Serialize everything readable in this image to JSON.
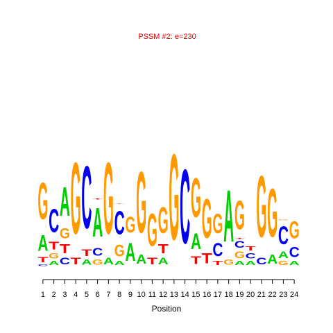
{
  "chart_data": {
    "type": "sequence-logo",
    "title": "PSSM #2: e=230",
    "xlabel": "Position",
    "ylabel": "",
    "positions": [
      "1",
      "2",
      "3",
      "4",
      "5",
      "6",
      "7",
      "8",
      "9",
      "10",
      "11",
      "12",
      "13",
      "14",
      "15",
      "16",
      "17",
      "18",
      "19",
      "20",
      "21",
      "22",
      "23",
      "24"
    ],
    "ylim": [
      0,
      1.0
    ],
    "colors": {
      "A": "#00cc00",
      "C": "#0000ee",
      "G": "#ff9900",
      "T": "#ff0000",
      "title": "#dd0000"
    },
    "columns": [
      [
        {
          "l": "C",
          "h": 0.012
        },
        {
          "l": "T",
          "h": 0.04
        },
        {
          "l": "A",
          "h": 0.12
        },
        {
          "l": "G",
          "h": 0.28
        }
      ],
      [
        {
          "l": "A",
          "h": 0.03
        },
        {
          "l": "G",
          "h": 0.04
        },
        {
          "l": "T",
          "h": 0.06
        },
        {
          "l": "C",
          "h": 0.18
        }
      ],
      [
        {
          "l": "C",
          "h": 0.05
        },
        {
          "l": "T",
          "h": 0.07
        },
        {
          "l": "G",
          "h": 0.08
        },
        {
          "l": "A",
          "h": 0.22
        }
      ],
      [
        {
          "l": "T",
          "h": 0.05
        },
        {
          "l": "G",
          "h": 0.55
        }
      ],
      [
        {
          "l": "A",
          "h": 0.04
        },
        {
          "l": "T",
          "h": 0.05
        },
        {
          "l": "C",
          "h": 0.48
        }
      ],
      [
        {
          "l": "G",
          "h": 0.04
        },
        {
          "l": "C",
          "h": 0.06
        },
        {
          "l": "A",
          "h": 0.22
        },
        {
          "l": "T",
          "h": 0.005
        }
      ],
      [
        {
          "l": "A",
          "h": 0.05
        },
        {
          "l": "G",
          "h": 0.55
        }
      ],
      [
        {
          "l": "A",
          "h": 0.03
        },
        {
          "l": "G",
          "h": 0.09
        },
        {
          "l": "C",
          "h": 0.18
        },
        {
          "l": "T",
          "h": 0.003
        }
      ],
      [
        {
          "l": "A",
          "h": 0.14
        },
        {
          "l": "G",
          "h": 0.12
        }
      ],
      [
        {
          "l": "A",
          "h": 0.07
        },
        {
          "l": "G",
          "h": 0.47
        }
      ],
      [
        {
          "l": "T",
          "h": 0.05
        },
        {
          "l": "G",
          "h": 0.25
        }
      ],
      [
        {
          "l": "A",
          "h": 0.05
        },
        {
          "l": "T",
          "h": 0.07
        },
        {
          "l": "G",
          "h": 0.2
        }
      ],
      [
        {
          "l": "G",
          "h": 0.66
        }
      ],
      [
        {
          "l": "C",
          "h": 0.57
        }
      ],
      [
        {
          "l": "T",
          "h": 0.06
        },
        {
          "l": "A",
          "h": 0.12
        },
        {
          "l": "G",
          "h": 0.3
        }
      ],
      [
        {
          "l": "T",
          "h": 0.08
        },
        {
          "l": "G",
          "h": 0.3
        }
      ],
      [
        {
          "l": "T",
          "h": 0.03
        },
        {
          "l": "C",
          "h": 0.1
        },
        {
          "l": "G",
          "h": 0.15
        }
      ],
      [
        {
          "l": "G",
          "h": 0.04
        },
        {
          "l": "A",
          "h": 0.4
        }
      ],
      [
        {
          "l": "A",
          "h": 0.03
        },
        {
          "l": "G",
          "h": 0.05
        },
        {
          "l": "C",
          "h": 0.05
        },
        {
          "l": "T",
          "h": 0.005
        },
        {
          "l": "G",
          "h": 0.22
        }
      ],
      [
        {
          "l": "A",
          "h": 0.03
        },
        {
          "l": "C",
          "h": 0.04
        },
        {
          "l": "T",
          "h": 0.03
        }
      ],
      [
        {
          "l": "C",
          "h": 0.05
        },
        {
          "l": "G",
          "h": 0.47
        }
      ],
      [
        {
          "l": "A",
          "h": 0.07
        },
        {
          "l": "G",
          "h": 0.37
        }
      ],
      [
        {
          "l": "G",
          "h": 0.03
        },
        {
          "l": "A",
          "h": 0.05
        },
        {
          "l": "C",
          "h": 0.14
        },
        {
          "l": "G",
          "h": 0.005
        }
      ],
      [
        {
          "l": "A",
          "h": 0.03
        },
        {
          "l": "C",
          "h": 0.08
        },
        {
          "l": "G",
          "h": 0.13
        }
      ]
    ]
  }
}
